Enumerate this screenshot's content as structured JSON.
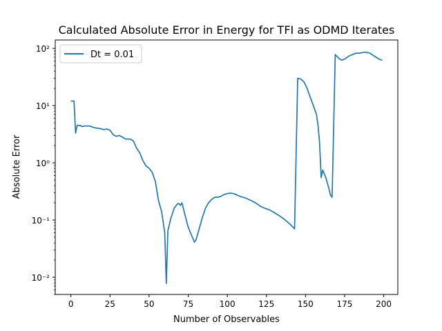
{
  "chart_data": {
    "type": "line",
    "title": "Calculated Absolute Error in Energy for TFI as ODMD Iterates",
    "xlabel": "Number of Observables",
    "ylabel": "Absolute Error",
    "xlim": [
      -10,
      209
    ],
    "ylim": [
      0.005,
      140
    ],
    "yscale": "log",
    "grid": false,
    "legend_loc": "upper left",
    "x_ticks": [
      0,
      25,
      50,
      75,
      100,
      125,
      150,
      175,
      200
    ],
    "x_tick_labels": [
      "0",
      "25",
      "50",
      "75",
      "100",
      "125",
      "150",
      "175",
      "200"
    ],
    "y_ticks": [
      0.01,
      0.1,
      1,
      10,
      100
    ],
    "y_tick_labels": [
      "10⁻²",
      "10⁻¹",
      "10⁰",
      "10¹",
      "10²"
    ],
    "series": [
      {
        "name": "Dt = 0.01",
        "color": "#1f77b4",
        "x": [
          0,
          2,
          3,
          4,
          6,
          7,
          9,
          12,
          15,
          18,
          21,
          23,
          25,
          27,
          29,
          31,
          33,
          35,
          38,
          40,
          42,
          44,
          46,
          48,
          50,
          52,
          54,
          56,
          58,
          60,
          61,
          62,
          64,
          66,
          68,
          69,
          70,
          71,
          73,
          75,
          77,
          79,
          80,
          82,
          84,
          86,
          88,
          90,
          92,
          94,
          96,
          98,
          100,
          102,
          104,
          106,
          108,
          110,
          112,
          115,
          118,
          121,
          124,
          127,
          130,
          133,
          136,
          139,
          141,
          142,
          143,
          145,
          147,
          149,
          151,
          153,
          155,
          157,
          158,
          159,
          160,
          161,
          163,
          165,
          166,
          167,
          169,
          171,
          173,
          175,
          178,
          182,
          185,
          188,
          191,
          194,
          197,
          199
        ],
        "y": [
          12,
          12,
          3.3,
          4.5,
          4.5,
          4.3,
          4.4,
          4.4,
          4.1,
          4.0,
          3.8,
          3.9,
          3.7,
          3.1,
          2.9,
          3.0,
          2.8,
          2.6,
          2.6,
          2.4,
          1.8,
          1.5,
          1.1,
          0.88,
          0.8,
          0.68,
          0.47,
          0.22,
          0.14,
          0.06,
          0.0078,
          0.065,
          0.11,
          0.16,
          0.19,
          0.195,
          0.18,
          0.2,
          0.12,
          0.075,
          0.055,
          0.041,
          0.045,
          0.07,
          0.11,
          0.16,
          0.2,
          0.23,
          0.25,
          0.25,
          0.26,
          0.28,
          0.29,
          0.295,
          0.29,
          0.275,
          0.26,
          0.25,
          0.24,
          0.22,
          0.2,
          0.175,
          0.16,
          0.15,
          0.135,
          0.12,
          0.105,
          0.09,
          0.08,
          0.075,
          0.07,
          30,
          29,
          26,
          20,
          14,
          10,
          7,
          4.5,
          2.2,
          0.55,
          0.75,
          0.55,
          0.35,
          0.27,
          0.25,
          78,
          68,
          62,
          65,
          74,
          82,
          83,
          86,
          83,
          73,
          65,
          62
        ]
      }
    ]
  }
}
